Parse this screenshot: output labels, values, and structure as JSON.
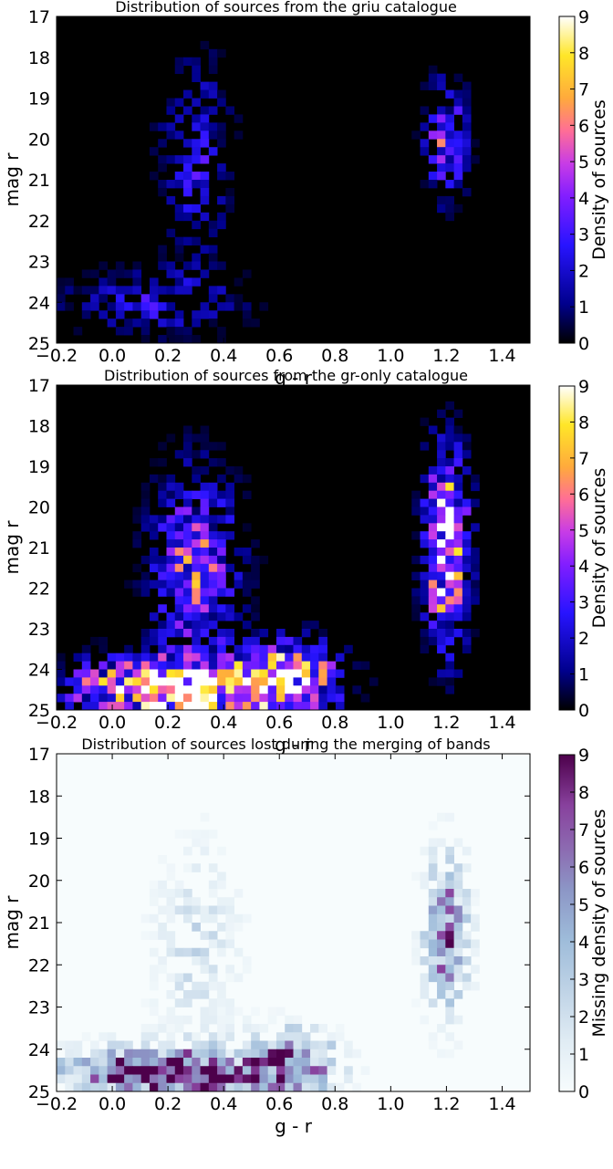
{
  "chart_data": [
    {
      "type": "heatmap",
      "title": "Distribution of sources from the griu catalogue",
      "xlabel": "g - r",
      "ylabel": "mag r",
      "xlim": [
        -0.2,
        1.5
      ],
      "ylim": [
        25,
        17
      ],
      "y_inverted": true,
      "xticks": [
        -0.2,
        0.0,
        0.2,
        0.4,
        0.6,
        0.8,
        1.0,
        1.2,
        1.4
      ],
      "xtick_labels": [
        "−0.2",
        "0.0",
        "0.2",
        "0.4",
        "0.6",
        "0.8",
        "1.0",
        "1.2",
        "1.4"
      ],
      "yticks": [
        17,
        18,
        19,
        20,
        21,
        22,
        23,
        24,
        25
      ],
      "ytick_labels": [
        "17",
        "18",
        "19",
        "20",
        "21",
        "22",
        "23",
        "24",
        "25"
      ],
      "colorbar_label": "Density of sources",
      "colorbar_range": [
        0,
        9
      ],
      "colorbar_ticks": [
        "0",
        "1",
        "2",
        "3",
        "4",
        "5",
        "6",
        "7",
        "8",
        "9"
      ],
      "colormap": "gnuplot2",
      "density_features": [
        {
          "g_r": 0.3,
          "mag_r": 20.5,
          "sigma_color": 0.08,
          "sigma_mag": 1.6,
          "amplitude": 2.5
        },
        {
          "g_r": 0.15,
          "mag_r": 24.0,
          "sigma_color": 0.2,
          "sigma_mag": 0.5,
          "amplitude": 2.5
        },
        {
          "g_r": 1.2,
          "mag_r": 20.0,
          "sigma_color": 0.05,
          "sigma_mag": 0.9,
          "amplitude": 4.5
        }
      ]
    },
    {
      "type": "heatmap",
      "title": "Distribution of sources from the gr-only catalogue",
      "xlabel": "g - r",
      "ylabel": "mag r",
      "xlim": [
        -0.2,
        1.5
      ],
      "ylim": [
        25,
        17
      ],
      "y_inverted": true,
      "xticks": [
        -0.2,
        0.0,
        0.2,
        0.4,
        0.6,
        0.8,
        1.0,
        1.2,
        1.4
      ],
      "xtick_labels": [
        "−0.2",
        "0.0",
        "0.2",
        "0.4",
        "0.6",
        "0.8",
        "1.0",
        "1.2",
        "1.4"
      ],
      "yticks": [
        17,
        18,
        19,
        20,
        21,
        22,
        23,
        24,
        25
      ],
      "ytick_labels": [
        "17",
        "18",
        "19",
        "20",
        "21",
        "22",
        "23",
        "24",
        "25"
      ],
      "colorbar_label": "Density of sources",
      "colorbar_range": [
        0,
        9
      ],
      "colorbar_ticks": [
        "0",
        "1",
        "2",
        "3",
        "4",
        "5",
        "6",
        "7",
        "8",
        "9"
      ],
      "colormap": "gnuplot2",
      "density_features": [
        {
          "g_r": 0.3,
          "mag_r": 21.5,
          "sigma_color": 0.1,
          "sigma_mag": 1.5,
          "amplitude": 5
        },
        {
          "g_r": 0.25,
          "mag_r": 24.5,
          "sigma_color": 0.25,
          "sigma_mag": 0.5,
          "amplitude": 11
        },
        {
          "g_r": 0.65,
          "mag_r": 24.2,
          "sigma_color": 0.1,
          "sigma_mag": 0.6,
          "amplitude": 7
        },
        {
          "g_r": 1.2,
          "mag_r": 21.0,
          "sigma_color": 0.05,
          "sigma_mag": 1.5,
          "amplitude": 9
        }
      ]
    },
    {
      "type": "heatmap",
      "title": "Distribution of sources lost during the merging of bands",
      "xlabel": "g - r",
      "ylabel": "mag r",
      "xlim": [
        -0.2,
        1.5
      ],
      "ylim": [
        25,
        17
      ],
      "y_inverted": true,
      "xticks": [
        -0.2,
        0.0,
        0.2,
        0.4,
        0.6,
        0.8,
        1.0,
        1.2,
        1.4
      ],
      "xtick_labels": [
        "−0.2",
        "0.0",
        "0.2",
        "0.4",
        "0.6",
        "0.8",
        "1.0",
        "1.2",
        "1.4"
      ],
      "yticks": [
        17,
        18,
        19,
        20,
        21,
        22,
        23,
        24,
        25
      ],
      "ytick_labels": [
        "17",
        "18",
        "19",
        "20",
        "21",
        "22",
        "23",
        "24",
        "25"
      ],
      "colorbar_label": "Missing density of sources",
      "colorbar_range": [
        0,
        9
      ],
      "colorbar_ticks": [
        "0",
        "1",
        "2",
        "3",
        "4",
        "5",
        "6",
        "7",
        "8",
        "9"
      ],
      "colormap": "BuPu",
      "density_features": [
        {
          "g_r": 0.3,
          "mag_r": 21.5,
          "sigma_color": 0.1,
          "sigma_mag": 1.5,
          "amplitude": 2
        },
        {
          "g_r": 0.2,
          "mag_r": 24.6,
          "sigma_color": 0.25,
          "sigma_mag": 0.4,
          "amplitude": 11
        },
        {
          "g_r": 0.65,
          "mag_r": 24.3,
          "sigma_color": 0.1,
          "sigma_mag": 0.5,
          "amplitude": 7
        },
        {
          "g_r": 1.2,
          "mag_r": 21.3,
          "sigma_color": 0.05,
          "sigma_mag": 1.2,
          "amplitude": 7
        }
      ]
    }
  ]
}
